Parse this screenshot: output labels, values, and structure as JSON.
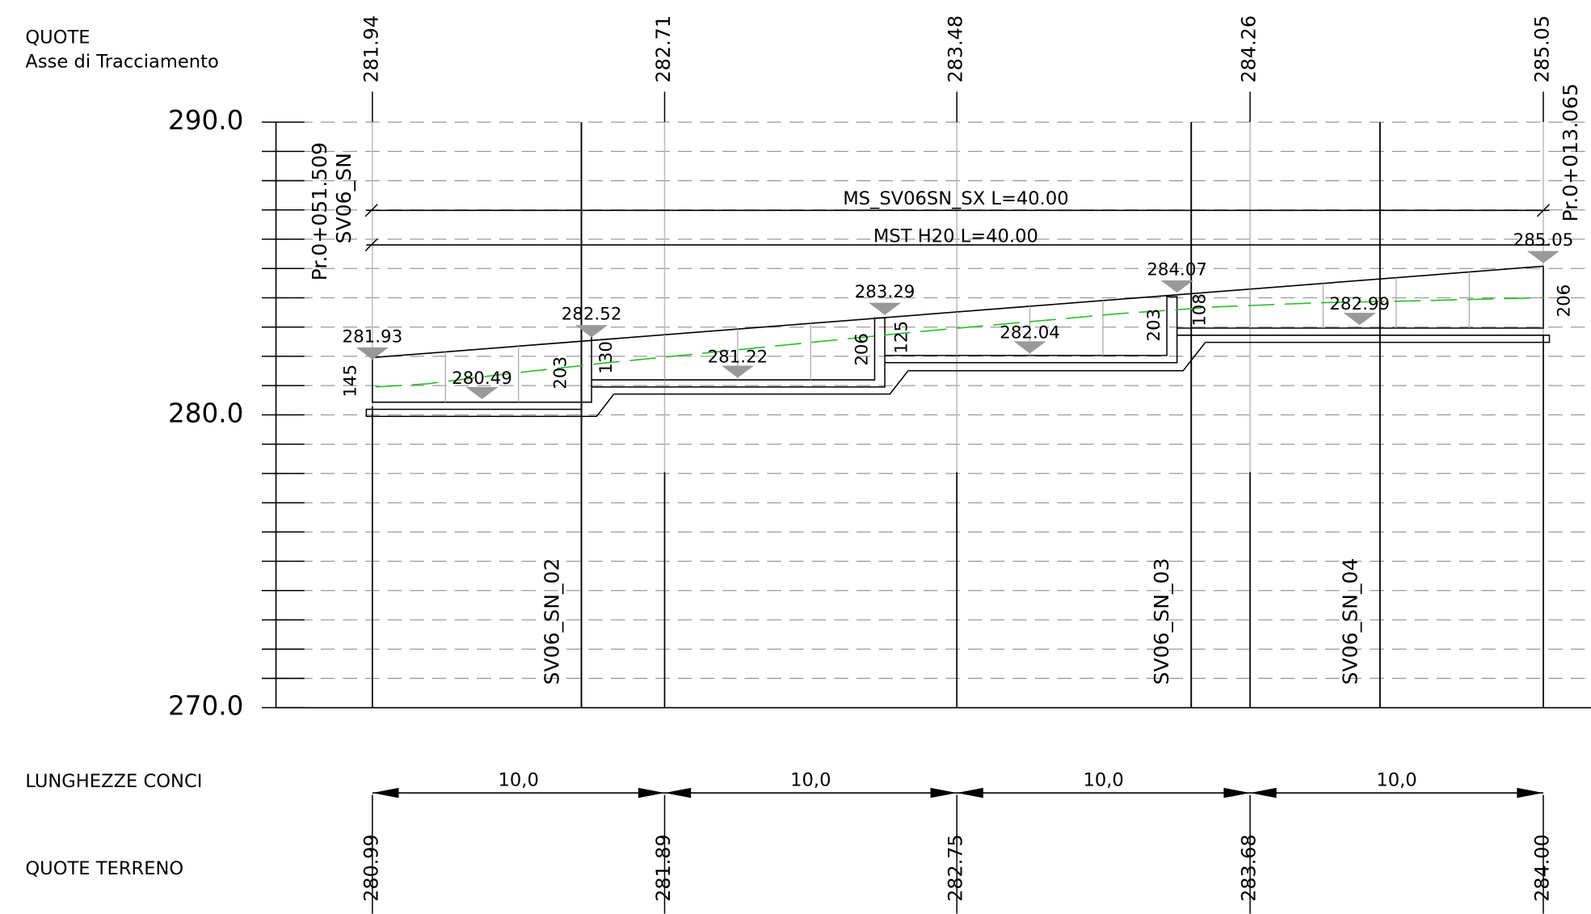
{
  "header": {
    "title": "QUOTE",
    "subtitle": "Asse di Tracciamento"
  },
  "elevation_axis": {
    "labels": [
      "290.0",
      "280.0",
      "270.0"
    ]
  },
  "stations": {
    "quote_tracciamento": [
      "281.94",
      "282.71",
      "283.48",
      "284.26",
      "285.05"
    ],
    "quote_terreno": [
      "280.99",
      "281.89",
      "282.75",
      "283.68",
      "284.00"
    ]
  },
  "rows": {
    "lunghezze": "LUNGHEZZE CONCI",
    "terreno": "QUOTE TERRENO"
  },
  "segment_lengths": [
    "10,0",
    "10,0",
    "10,0",
    "10,0"
  ],
  "sections": [
    {
      "progressive": "Pr.0+051.509",
      "name": "SV06_SN"
    },
    {
      "progressive": "Pr.0+013.065"
    }
  ],
  "walls": [
    "SV06_SN_02",
    "SV06_SN_03",
    "SV06_SN_04"
  ],
  "beams": [
    "MS_SV06SN_SX  L=40.00",
    "MST H20  L=40.00"
  ],
  "top_elevations": [
    "281.93",
    "282.52",
    "283.29",
    "284.07",
    "285.05"
  ],
  "bottom_elevations": [
    "280.49",
    "281.22",
    "282.04",
    "282.99"
  ],
  "dimensions": [
    "145",
    "203",
    "130",
    "206",
    "125",
    "203",
    "108",
    "206"
  ]
}
